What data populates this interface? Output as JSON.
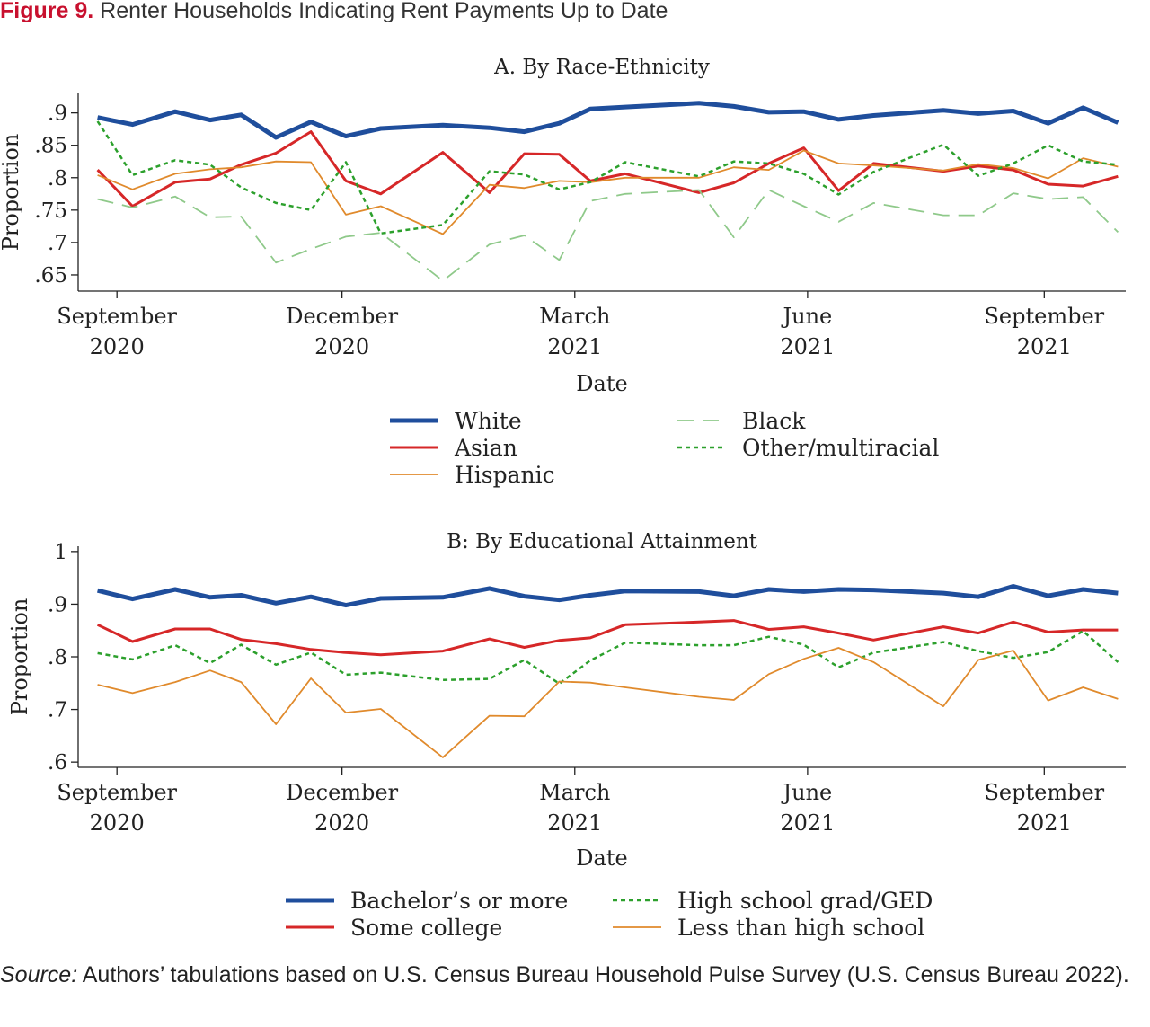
{
  "figure": {
    "label": "Figure 9.",
    "title": "Renter Households Indicating Rent Payments Up to Date"
  },
  "source": {
    "label": "Source:",
    "text": "Authors’ tabulations based on U.S. Census Bureau Household Pulse Survey (U.S. Census Bureau 2022)."
  },
  "chart_data": [
    {
      "type": "line",
      "title": "A. By Race-Ethnicity",
      "xlabel": "Date",
      "ylabel": "Proportion",
      "ylim": [
        0.625,
        0.93
      ],
      "xlim": [
        -0.5,
        26.5
      ],
      "y_ticks": [
        0.65,
        0.7,
        0.75,
        0.8,
        0.85,
        0.9
      ],
      "y_tick_labels": [
        ".65",
        ".7",
        ".75",
        ".8",
        ".85",
        ".9"
      ],
      "x_ticks": [
        {
          "pos": 0.5,
          "line1": "September",
          "line2": "2020"
        },
        {
          "pos": 6.3,
          "line1": "December",
          "line2": "2020"
        },
        {
          "pos": 12.3,
          "line1": "March",
          "line2": "2021"
        },
        {
          "pos": 18.3,
          "line1": "June",
          "line2": "2021"
        },
        {
          "pos": 24.4,
          "line1": "September",
          "line2": "2021"
        }
      ],
      "x": [
        0,
        0.9,
        2,
        2.9,
        3.7,
        4.6,
        5.5,
        6.4,
        7.3,
        8.9,
        10.1,
        11,
        11.9,
        12.7,
        13.6,
        15.5,
        16.4,
        17.3,
        18.2,
        19.1,
        20,
        21.8,
        22.7,
        23.6,
        24.5,
        25.4,
        26.3
      ],
      "grid": false,
      "legend": "bottom",
      "series": [
        {
          "name": "White",
          "color": "#1f4e9c",
          "width": 5,
          "dash": "",
          "values": [
            0.893,
            0.882,
            0.902,
            0.889,
            0.897,
            0.862,
            0.886,
            0.864,
            0.876,
            0.881,
            0.877,
            0.871,
            0.884,
            0.906,
            0.909,
            0.915,
            0.91,
            0.901,
            0.902,
            0.89,
            0.896,
            0.904,
            0.899,
            0.903,
            0.884,
            0.908,
            0.885
          ]
        },
        {
          "name": "Asian",
          "color": "#d62728",
          "width": 3,
          "dash": "",
          "values": [
            0.812,
            0.756,
            0.793,
            0.798,
            0.82,
            0.838,
            0.871,
            0.795,
            0.775,
            0.839,
            0.777,
            0.837,
            0.836,
            0.795,
            0.806,
            0.777,
            0.792,
            0.822,
            0.846,
            0.78,
            0.822,
            0.81,
            0.818,
            0.812,
            0.79,
            0.787,
            0.802
          ]
        },
        {
          "name": "Hispanic",
          "color": "#e08a2c",
          "width": 1.8,
          "dash": "",
          "values": [
            0.804,
            0.782,
            0.806,
            0.813,
            0.816,
            0.825,
            0.824,
            0.743,
            0.756,
            0.713,
            0.789,
            0.784,
            0.795,
            0.793,
            0.8,
            0.8,
            0.816,
            0.812,
            0.842,
            0.822,
            0.819,
            0.811,
            0.821,
            0.815,
            0.799,
            0.83,
            0.817
          ]
        },
        {
          "name": "Black",
          "color": "#8fc98a",
          "width": 1.8,
          "dash": "18 10",
          "values": [
            0.767,
            0.754,
            0.771,
            0.739,
            0.74,
            0.669,
            0.69,
            0.709,
            0.715,
            0.641,
            0.697,
            0.711,
            0.673,
            0.764,
            0.775,
            0.781,
            0.708,
            0.781,
            0.756,
            0.732,
            0.761,
            0.742,
            0.742,
            0.776,
            0.767,
            0.77,
            0.716
          ]
        },
        {
          "name": "Other/multiracial",
          "color": "#2ca02c",
          "width": 2.5,
          "dash": "5 4",
          "values": [
            0.887,
            0.804,
            0.827,
            0.82,
            0.785,
            0.761,
            0.75,
            0.824,
            0.714,
            0.727,
            0.81,
            0.805,
            0.782,
            0.793,
            0.824,
            0.802,
            0.825,
            0.822,
            0.806,
            0.774,
            0.809,
            0.851,
            0.803,
            0.822,
            0.85,
            0.825,
            0.82
          ]
        }
      ]
    },
    {
      "type": "line",
      "title": "B: By Educational Attainment",
      "xlabel": "Date",
      "ylabel": "Proportion",
      "ylim": [
        0.59,
        1.01
      ],
      "xlim": [
        -0.5,
        26.5
      ],
      "y_ticks": [
        0.6,
        0.7,
        0.8,
        0.9,
        1.0
      ],
      "y_tick_labels": [
        ".6",
        ".7",
        ".8",
        ".9",
        "1"
      ],
      "x_ticks": [
        {
          "pos": 0.5,
          "line1": "September",
          "line2": "2020"
        },
        {
          "pos": 6.3,
          "line1": "December",
          "line2": "2020"
        },
        {
          "pos": 12.3,
          "line1": "March",
          "line2": "2021"
        },
        {
          "pos": 18.3,
          "line1": "June",
          "line2": "2021"
        },
        {
          "pos": 24.4,
          "line1": "September",
          "line2": "2021"
        }
      ],
      "x": [
        0,
        0.9,
        2,
        2.9,
        3.7,
        4.6,
        5.5,
        6.4,
        7.3,
        8.9,
        10.1,
        11,
        11.9,
        12.7,
        13.6,
        15.5,
        16.4,
        17.3,
        18.2,
        19.1,
        20,
        21.8,
        22.7,
        23.6,
        24.5,
        25.4,
        26.3
      ],
      "grid": false,
      "legend": "bottom",
      "series": [
        {
          "name": "Bachelor’s or more",
          "color": "#1f4e9c",
          "width": 5,
          "dash": "",
          "values": [
            0.926,
            0.91,
            0.928,
            0.913,
            0.917,
            0.902,
            0.914,
            0.898,
            0.911,
            0.913,
            0.93,
            0.915,
            0.908,
            0.917,
            0.925,
            0.924,
            0.916,
            0.928,
            0.924,
            0.928,
            0.927,
            0.921,
            0.914,
            0.934,
            0.916,
            0.928,
            0.921
          ]
        },
        {
          "name": "Some college",
          "color": "#d62728",
          "width": 3,
          "dash": "",
          "values": [
            0.861,
            0.829,
            0.853,
            0.853,
            0.833,
            0.825,
            0.814,
            0.808,
            0.804,
            0.811,
            0.834,
            0.818,
            0.831,
            0.836,
            0.861,
            0.866,
            0.869,
            0.852,
            0.857,
            0.845,
            0.832,
            0.857,
            0.845,
            0.866,
            0.847,
            0.851,
            0.851
          ]
        },
        {
          "name": "High school grad/GED",
          "color": "#2ca02c",
          "width": 2.5,
          "dash": "5 4",
          "values": [
            0.807,
            0.795,
            0.822,
            0.788,
            0.823,
            0.785,
            0.808,
            0.766,
            0.77,
            0.756,
            0.758,
            0.794,
            0.749,
            0.793,
            0.827,
            0.822,
            0.822,
            0.838,
            0.823,
            0.78,
            0.808,
            0.828,
            0.811,
            0.798,
            0.809,
            0.849,
            0.79
          ]
        },
        {
          "name": "Less than high school",
          "color": "#e08a2c",
          "width": 1.8,
          "dash": "",
          "values": [
            0.747,
            0.731,
            0.752,
            0.774,
            0.752,
            0.672,
            0.759,
            0.694,
            0.701,
            0.609,
            0.688,
            0.687,
            0.753,
            0.751,
            0.742,
            0.724,
            0.718,
            0.767,
            0.796,
            0.817,
            0.79,
            0.706,
            0.794,
            0.812,
            0.717,
            0.742,
            0.72
          ]
        }
      ]
    }
  ]
}
